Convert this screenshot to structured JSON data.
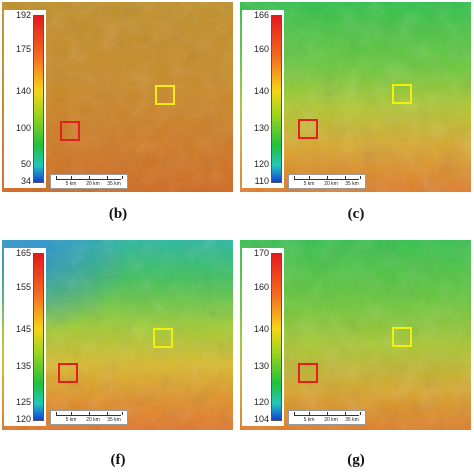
{
  "panels": [
    {
      "id": "b",
      "caption": "(b)",
      "colorbar_ticks": [
        "192",
        "175",
        "140",
        "100",
        "50",
        "34"
      ],
      "scale_labels": [
        "5 km",
        "20 km",
        "35 km"
      ],
      "roi_colors": {
        "red": "#e32020",
        "yellow": "#f2ee10"
      }
    },
    {
      "id": "c",
      "caption": "(c)",
      "colorbar_ticks": [
        "166",
        "160",
        "140",
        "130",
        "120",
        "110"
      ],
      "scale_labels": [
        "5 km",
        "20 km",
        "35 km"
      ],
      "roi_colors": {
        "red": "#e32020",
        "yellow": "#f2ee10"
      }
    },
    {
      "id": "f",
      "caption": "(f)",
      "colorbar_ticks": [
        "165",
        "155",
        "145",
        "135",
        "125",
        "120"
      ],
      "scale_labels": [
        "5 km",
        "20 km",
        "35 km"
      ],
      "roi_colors": {
        "red": "#e32020",
        "yellow": "#f2ee10"
      }
    },
    {
      "id": "g",
      "caption": "(g)",
      "colorbar_ticks": [
        "170",
        "160",
        "140",
        "130",
        "120",
        "104"
      ],
      "scale_labels": [
        "5 km",
        "20 km",
        "35 km"
      ],
      "roi_colors": {
        "red": "#e32020",
        "yellow": "#f2ee10"
      }
    }
  ]
}
